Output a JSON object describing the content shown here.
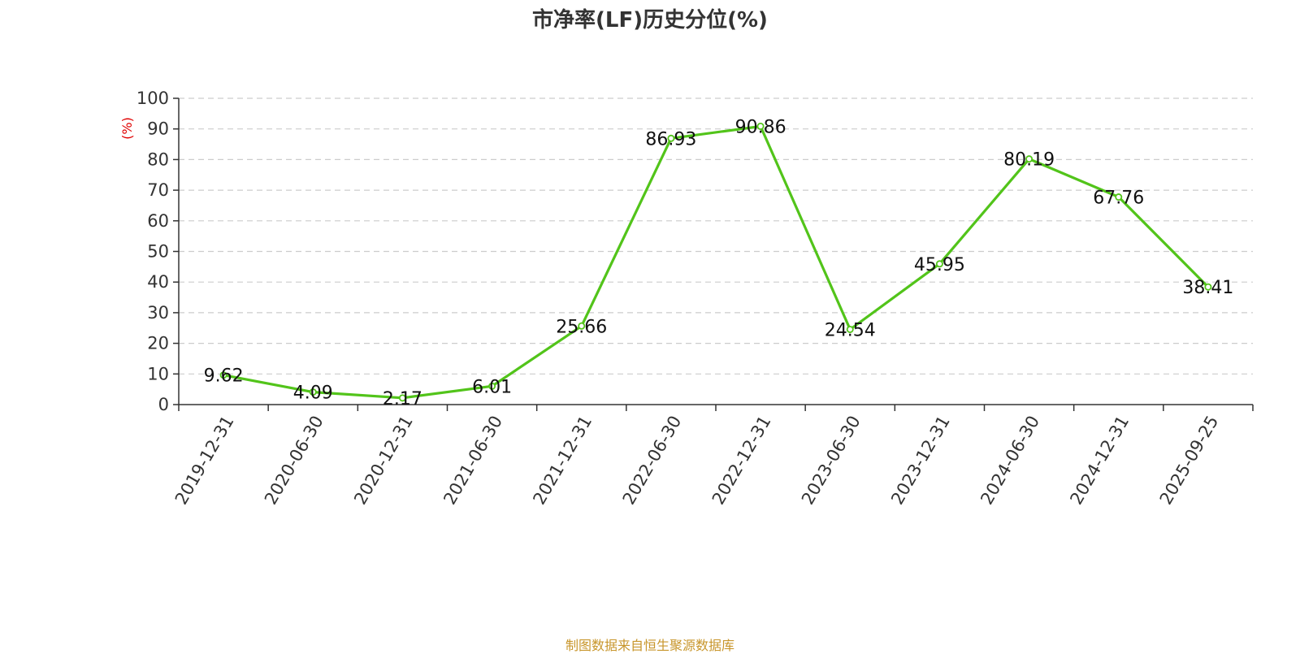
{
  "chart_data": {
    "type": "line",
    "title": "市净率(LF)历史分位(%)",
    "ylabel": "(%)",
    "xlabel": "",
    "ylim": [
      0,
      100
    ],
    "yticks": [
      0,
      10,
      20,
      30,
      40,
      50,
      60,
      70,
      80,
      90,
      100
    ],
    "grid": true,
    "categories": [
      "2019-12-31",
      "2020-06-30",
      "2020-12-31",
      "2021-06-30",
      "2021-12-31",
      "2022-06-30",
      "2022-12-31",
      "2023-06-30",
      "2023-12-31",
      "2024-06-30",
      "2024-12-31",
      "2025-09-25"
    ],
    "series": [
      {
        "values": [
          9.62,
          4.09,
          2.17,
          6.01,
          25.66,
          86.93,
          90.86,
          24.54,
          45.95,
          80.19,
          67.76,
          38.41
        ]
      }
    ],
    "colors": {
      "line": "#52c41a",
      "ylabel": "#e00000",
      "source": "#c8962c"
    }
  },
  "footer": {
    "source": "制图数据来自恒生聚源数据库"
  }
}
